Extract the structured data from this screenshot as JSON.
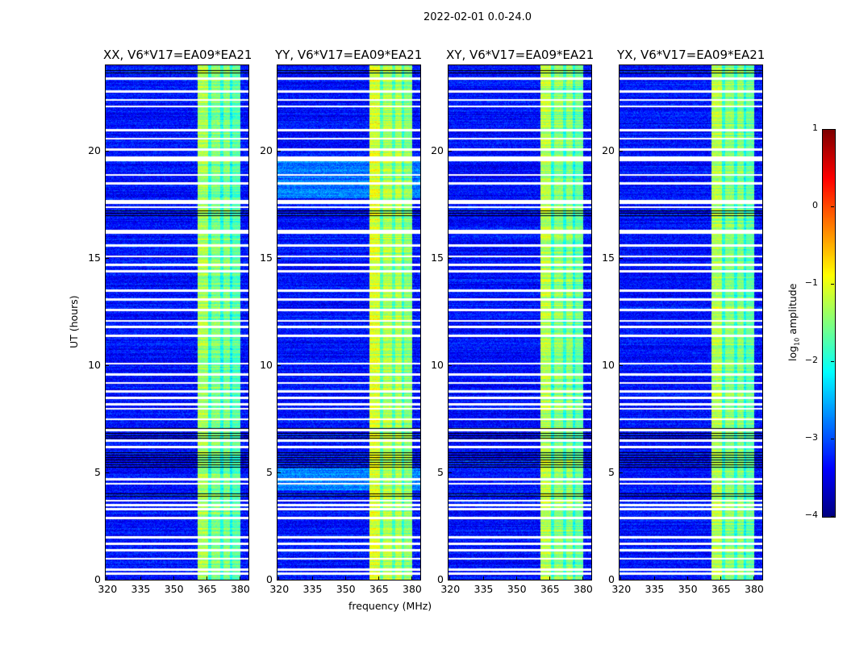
{
  "chart_data": {
    "type": "heatmap",
    "title": "2022-02-01 0.0-24.0",
    "xlabel": "frequency (MHz)",
    "ylabel": "UT (hours)",
    "xlim": [
      319.5,
      384
    ],
    "ylim": [
      0,
      24
    ],
    "xticks": [
      "320",
      "335",
      "350",
      "365",
      "380"
    ],
    "xtick_values": [
      320,
      335,
      350,
      365,
      380
    ],
    "yticks": [
      "0",
      "5",
      "10",
      "15",
      "20"
    ],
    "ytick_values": [
      0,
      5,
      10,
      15,
      20
    ],
    "panels": [
      {
        "title": "XX, V6*V17=EA09*EA21",
        "gain": 0.0
      },
      {
        "title": "YY, V6*V17=EA09*EA21",
        "gain": 0.25
      },
      {
        "title": "XY, V6*V17=EA09*EA21",
        "gain": 0.1
      },
      {
        "title": "YX, V6*V17=EA09*EA21",
        "gain": 0.05
      }
    ],
    "background_level": -3.3,
    "band_columns_mhz": [
      {
        "from": 361,
        "to": 365.5,
        "level": -1.3
      },
      {
        "from": 365.5,
        "to": 367,
        "level": -2.0
      },
      {
        "from": 367,
        "to": 371,
        "level": -1.5
      },
      {
        "from": 371,
        "to": 372.5,
        "level": -2.0
      },
      {
        "from": 372.5,
        "to": 375.5,
        "level": -1.5
      },
      {
        "from": 375.5,
        "to": 376.5,
        "level": -2.1
      },
      {
        "from": 376.5,
        "to": 380,
        "level": -1.7
      }
    ],
    "bright_rows_ut": [
      {
        "from": 10.5,
        "to": 11.0,
        "level": -1.3,
        "band_level": -0.5
      },
      {
        "from": 2.2,
        "to": 2.5,
        "level": -3.2,
        "band_level": -0.4
      },
      {
        "from": 13.9,
        "to": 14.2,
        "level": -2.6,
        "band_level": -0.6
      },
      {
        "from": 21.3,
        "to": 21.6,
        "level": -3.0,
        "band_level": -0.6
      }
    ],
    "flagged_rows_ut": [
      0.3,
      0.5,
      1.0,
      1.4,
      1.7,
      2.0,
      2.9,
      3.3,
      3.5,
      3.7,
      4.5,
      4.7,
      6.2,
      6.5,
      7.0,
      7.5,
      8.0,
      8.2,
      8.5,
      8.8,
      9.2,
      9.6,
      10.1,
      11.4,
      11.8,
      12.1,
      12.6,
      13.1,
      13.5,
      14.4,
      14.7,
      15.1,
      15.6,
      16.2,
      16.3,
      17.4,
      17.6,
      17.7,
      18.5,
      18.9,
      19.6,
      19.7,
      20.1,
      20.6,
      21.0,
      22.1,
      22.4,
      22.8,
      23.4
    ],
    "dark_rows_ut": [
      [
        5.2,
        6.0
      ],
      [
        6.6,
        7.1
      ],
      [
        3.9,
        4.1
      ],
      [
        16.9,
        17.3
      ],
      [
        23.6,
        23.8
      ]
    ],
    "colorbar": {
      "label": "log",
      "label_sub": "10",
      "label_rest": " amplitude",
      "range": [
        -4,
        1
      ],
      "ticks": [
        "1",
        "0",
        "−1",
        "−2",
        "−3",
        "−4"
      ],
      "tick_values": [
        1,
        0,
        -1,
        -2,
        -3,
        -4
      ],
      "colormap": "jet"
    }
  }
}
